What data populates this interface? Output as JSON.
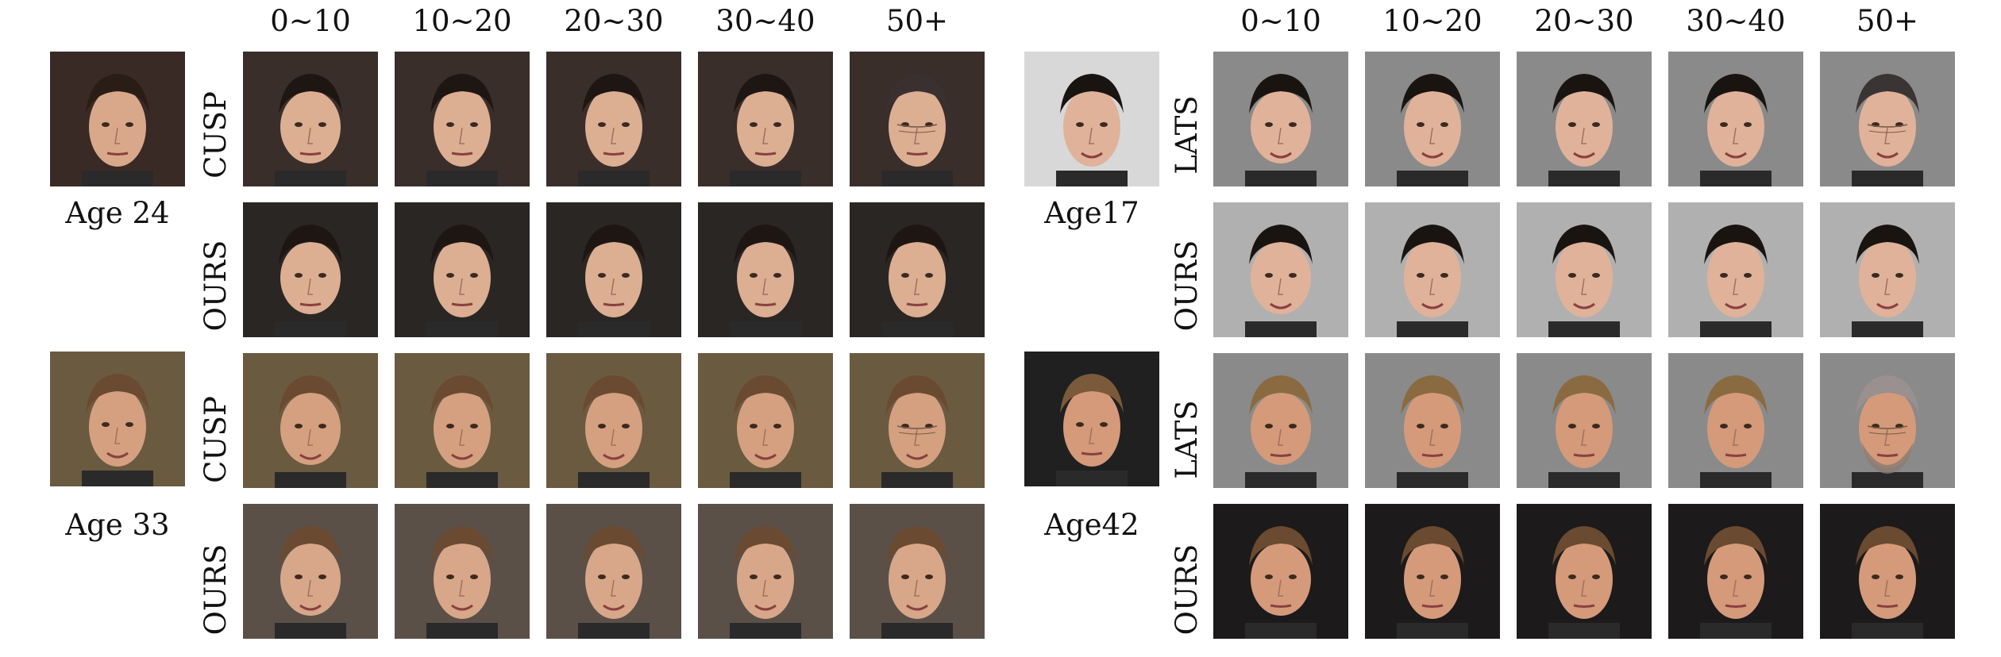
{
  "left_panel": {
    "age_headers": [
      "0∼10",
      "10∼20",
      "20∼30",
      "30∼40",
      "50+"
    ],
    "subjects": [
      {
        "input_label": "Age 24",
        "rows": [
          "CUSP",
          "OURS"
        ]
      },
      {
        "input_label": "Age 33",
        "rows": [
          "CUSP",
          "OURS"
        ]
      }
    ]
  },
  "right_panel": {
    "age_headers": [
      "0∼10",
      "10∼20",
      "20∼30",
      "30∼40",
      "50+"
    ],
    "subjects": [
      {
        "input_label": "Age17",
        "rows": [
          "LATS",
          "OURS"
        ]
      },
      {
        "input_label": "Age42",
        "rows": [
          "LATS",
          "OURS"
        ]
      }
    ]
  },
  "colors": {
    "gray_background": "#8a8a8a",
    "dark_background": "#1c1a1a",
    "skin": "#d9a88a"
  }
}
